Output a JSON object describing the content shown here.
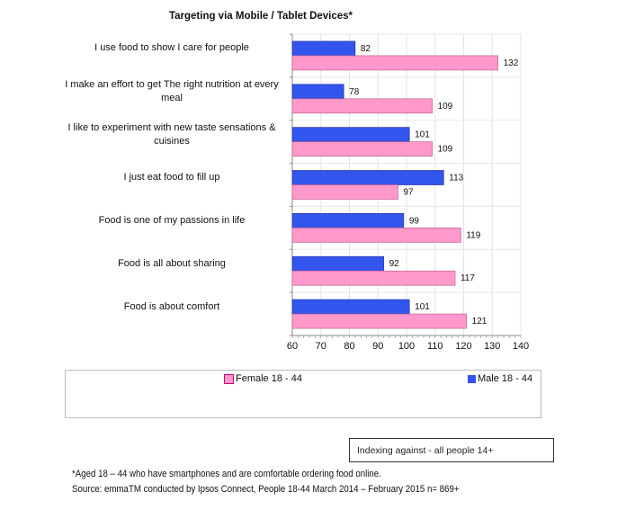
{
  "chart_data": {
    "type": "bar",
    "orientation": "horizontal",
    "title": "Targeting via Mobile / Tablet Devices*",
    "categories": [
      "I use food to show I care for people",
      "I make an effort to get The right nutrition at every meal",
      "I like to experiment with new taste sensations & cuisines",
      "I just eat food to fill up",
      "Food is one of my passions in life",
      "Food is all about sharing",
      "Food is about comfort"
    ],
    "series": [
      {
        "name": "Male 18 - 44",
        "color": "#3355ee",
        "values": [
          82,
          78,
          101,
          113,
          99,
          92,
          101
        ]
      },
      {
        "name": "Female 18 - 44",
        "color": "#ff99cc",
        "values": [
          132,
          109,
          109,
          97,
          119,
          117,
          121
        ]
      }
    ],
    "xlim": [
      60,
      140
    ],
    "xticks": [
      "60",
      "70",
      "80",
      "90",
      "100",
      "110",
      "120",
      "130",
      "140"
    ],
    "grid": true,
    "legend_position": "bottom",
    "legend": [
      "Female 18 - 44",
      "Male 18 - 44"
    ]
  },
  "index_note": "Indexing against - all people 14+",
  "footnote": "*Aged 18 – 44 who have smartphones and are comfortable ordering food online.",
  "source": "Source: emmaTM conducted by Ipsos Connect, People 18-44  March 2014 – February 2015 n= 869+"
}
